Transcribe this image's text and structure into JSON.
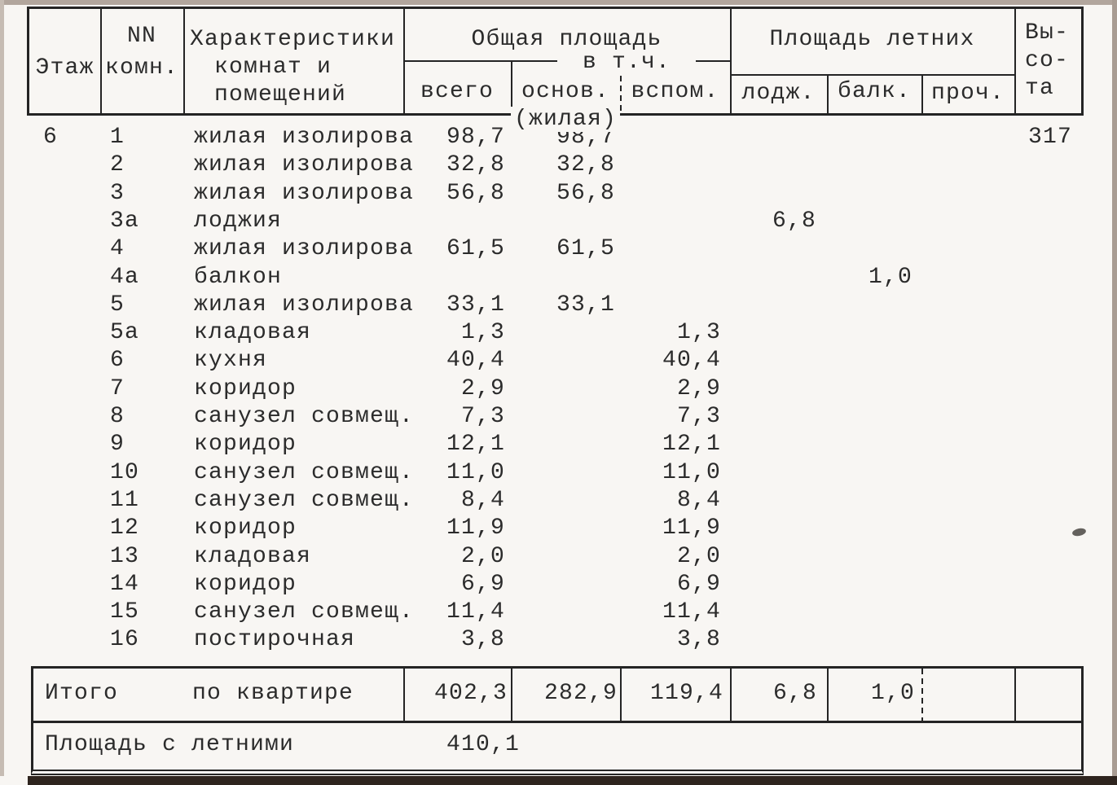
{
  "document": {
    "header": {
      "col_floor": "Этаж",
      "col_room_line1": "NN",
      "col_room_line2": "комн.",
      "col_char_line1": "Характеристики",
      "col_char_line2": "комнат и",
      "col_char_line3": "помещений",
      "group_total_area": "Общая площадь",
      "incl_label": "в т.ч.",
      "col_total": "всего",
      "col_main": "основ.",
      "col_main_sub": "(жилая)",
      "col_aux": "вспом.",
      "group_summer": "Площадь летних",
      "col_loggia": "лодж.",
      "col_balcony": "балк.",
      "col_other": "проч.",
      "col_height_line1": "Вы-",
      "col_height_line2": "со-",
      "col_height_line3": "та"
    },
    "rows": [
      {
        "floor": "6",
        "num": "1",
        "name": "жилая изолирова",
        "total": "98,7",
        "main": "98,7",
        "aux": "",
        "loggia": "",
        "balcony": "",
        "height": "317"
      },
      {
        "floor": "",
        "num": "2",
        "name": "жилая изолирова",
        "total": "32,8",
        "main": "32,8",
        "aux": "",
        "loggia": "",
        "balcony": "",
        "height": ""
      },
      {
        "floor": "",
        "num": "3",
        "name": "жилая изолирова",
        "total": "56,8",
        "main": "56,8",
        "aux": "",
        "loggia": "",
        "balcony": "",
        "height": ""
      },
      {
        "floor": "",
        "num": "3а",
        "name": "лоджия",
        "total": "",
        "main": "",
        "aux": "",
        "loggia": "6,8",
        "balcony": "",
        "height": ""
      },
      {
        "floor": "",
        "num": "4",
        "name": "жилая изолирова",
        "total": "61,5",
        "main": "61,5",
        "aux": "",
        "loggia": "",
        "balcony": "",
        "height": ""
      },
      {
        "floor": "",
        "num": "4а",
        "name": "балкон",
        "total": "",
        "main": "",
        "aux": "",
        "loggia": "",
        "balcony": "1,0",
        "height": ""
      },
      {
        "floor": "",
        "num": "5",
        "name": "жилая изолирова",
        "total": "33,1",
        "main": "33,1",
        "aux": "",
        "loggia": "",
        "balcony": "",
        "height": ""
      },
      {
        "floor": "",
        "num": "5а",
        "name": "кладовая",
        "total": "1,3",
        "main": "",
        "aux": "1,3",
        "loggia": "",
        "balcony": "",
        "height": ""
      },
      {
        "floor": "",
        "num": "6",
        "name": "кухня",
        "total": "40,4",
        "main": "",
        "aux": "40,4",
        "loggia": "",
        "balcony": "",
        "height": ""
      },
      {
        "floor": "",
        "num": "7",
        "name": "коридор",
        "total": "2,9",
        "main": "",
        "aux": "2,9",
        "loggia": "",
        "balcony": "",
        "height": ""
      },
      {
        "floor": "",
        "num": "8",
        "name": "санузел совмещ.",
        "total": "7,3",
        "main": "",
        "aux": "7,3",
        "loggia": "",
        "balcony": "",
        "height": ""
      },
      {
        "floor": "",
        "num": "9",
        "name": "коридор",
        "total": "12,1",
        "main": "",
        "aux": "12,1",
        "loggia": "",
        "balcony": "",
        "height": ""
      },
      {
        "floor": "",
        "num": "10",
        "name": "санузел совмещ.",
        "total": "11,0",
        "main": "",
        "aux": "11,0",
        "loggia": "",
        "balcony": "",
        "height": ""
      },
      {
        "floor": "",
        "num": "11",
        "name": "санузел совмещ.",
        "total": "8,4",
        "main": "",
        "aux": "8,4",
        "loggia": "",
        "balcony": "",
        "height": ""
      },
      {
        "floor": "",
        "num": "12",
        "name": "коридор",
        "total": "11,9",
        "main": "",
        "aux": "11,9",
        "loggia": "",
        "balcony": "",
        "height": ""
      },
      {
        "floor": "",
        "num": "13",
        "name": "кладовая",
        "total": "2,0",
        "main": "",
        "aux": "2,0",
        "loggia": "",
        "balcony": "",
        "height": ""
      },
      {
        "floor": "",
        "num": "14",
        "name": "коридор",
        "total": "6,9",
        "main": "",
        "aux": "6,9",
        "loggia": "",
        "balcony": "",
        "height": ""
      },
      {
        "floor": "",
        "num": "15",
        "name": "санузел совмещ.",
        "total": "11,4",
        "main": "",
        "aux": "11,4",
        "loggia": "",
        "balcony": "",
        "height": ""
      },
      {
        "floor": "",
        "num": "16",
        "name": "постирочная",
        "total": "3,8",
        "main": "",
        "aux": "3,8",
        "loggia": "",
        "balcony": "",
        "height": ""
      }
    ],
    "totals_row": {
      "label1": "Итого",
      "label2": "по квартире",
      "total": "402,3",
      "main": "282,9",
      "aux": "119,4",
      "loggia": "6,8",
      "balcony": "1,0",
      "other": "",
      "height": ""
    },
    "summer_row": {
      "label": "Площадь с летними",
      "value": "410,1"
    }
  },
  "colors": {
    "ink": "#2b2b2b",
    "paper": "#f8f6f3",
    "scan_edge_top": "#b2a69d",
    "scan_edge_bottom": "#2e241e"
  }
}
